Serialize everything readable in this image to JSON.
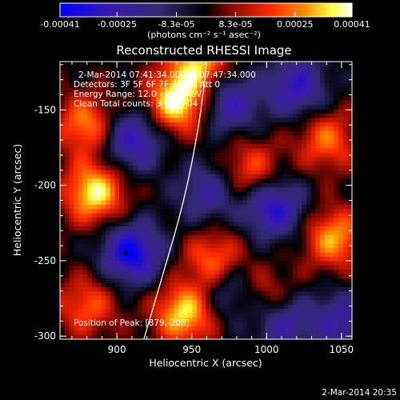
{
  "colorbar": {
    "tick_labels": [
      "-0.00041",
      "-0.00025",
      "-8.3e-05",
      "8.3e-05",
      "0.00025",
      "0.00041"
    ],
    "tick_values": [
      -0.00041,
      -0.00025,
      -8.3e-05,
      8.3e-05,
      0.00025,
      0.00041
    ],
    "range": [
      -0.00041,
      0.00041
    ],
    "units": "(photons cm⁻² s⁻¹ asec⁻²)",
    "colors": [
      "#0000ff",
      "#4000c0",
      "#303090",
      "#000000",
      "#801000",
      "#ff3000",
      "#ff9000",
      "#ffff60",
      "#ffffff"
    ]
  },
  "chart_data": {
    "type": "heatmap",
    "title": "Reconstructed RHESSI Image",
    "xlabel": "Heliocentric X (arcsec)",
    "ylabel": "Heliocentric Y (arcsec)",
    "xlim": [
      862,
      1057
    ],
    "ylim": [
      -302,
      -118
    ],
    "x_ticks": [
      900,
      950,
      1000,
      1050
    ],
    "y_ticks": [
      -150,
      -200,
      -250,
      -300
    ],
    "x_tick_labels": [
      "900",
      "950",
      "1000",
      "1050"
    ],
    "y_tick_labels": [
      "-150",
      "-200",
      "-250",
      "-300"
    ],
    "peak": [
      879,
      -208
    ],
    "dark_spot": [
      906,
      -245
    ],
    "limb_points": [
      [
        960,
        -118
      ],
      [
        955,
        -160
      ],
      [
        945,
        -210
      ],
      [
        932,
        -255
      ],
      [
        918,
        -302
      ]
    ],
    "blobs": [
      {
        "x": 940,
        "y": -145,
        "sign": 1,
        "amp": 1.0
      },
      {
        "x": 955,
        "y": -120,
        "sign": 1,
        "amp": 0.8
      },
      {
        "x": 885,
        "y": -205,
        "sign": 1,
        "amp": 0.95
      },
      {
        "x": 880,
        "y": -160,
        "sign": 1,
        "amp": 0.7
      },
      {
        "x": 965,
        "y": -250,
        "sign": 1,
        "amp": 0.65
      },
      {
        "x": 945,
        "y": -285,
        "sign": 1,
        "amp": 0.9
      },
      {
        "x": 1040,
        "y": -170,
        "sign": 1,
        "amp": 0.6
      },
      {
        "x": 1045,
        "y": -235,
        "sign": 1,
        "amp": 0.75
      },
      {
        "x": 880,
        "y": -280,
        "sign": 1,
        "amp": 0.55
      },
      {
        "x": 990,
        "y": -190,
        "sign": 1,
        "amp": 0.55
      },
      {
        "x": 1000,
        "y": -275,
        "sign": 1,
        "amp": 0.5
      },
      {
        "x": 910,
        "y": -170,
        "sign": -1,
        "amp": 0.8
      },
      {
        "x": 910,
        "y": -245,
        "sign": -1,
        "amp": 1.0
      },
      {
        "x": 975,
        "y": -145,
        "sign": -1,
        "amp": 0.7
      },
      {
        "x": 1005,
        "y": -215,
        "sign": -1,
        "amp": 0.85
      },
      {
        "x": 1020,
        "y": -135,
        "sign": -1,
        "amp": 0.75
      },
      {
        "x": 1010,
        "y": -290,
        "sign": -1,
        "amp": 0.7
      },
      {
        "x": 960,
        "y": -205,
        "sign": -1,
        "amp": 0.55
      },
      {
        "x": 1050,
        "y": -290,
        "sign": -1,
        "amp": 0.6
      },
      {
        "x": 975,
        "y": -270,
        "sign": -1,
        "amp": 0.5
      }
    ],
    "annotations": {
      "time_range": "2-Mar-2014 07:41:34.000 to 07:47:34.000",
      "detectors": "Detectors: 3F 5F 6F 7F 8F 9F, Att 0",
      "energy": "Energy Range: 12.0 - 25.0 keV",
      "clean": "Clean     Total counts: 3.63E+04",
      "peak_label": "Position of Peak: [879,-208]"
    }
  },
  "footer": {
    "date": "2-Mar-2014 20:35"
  }
}
